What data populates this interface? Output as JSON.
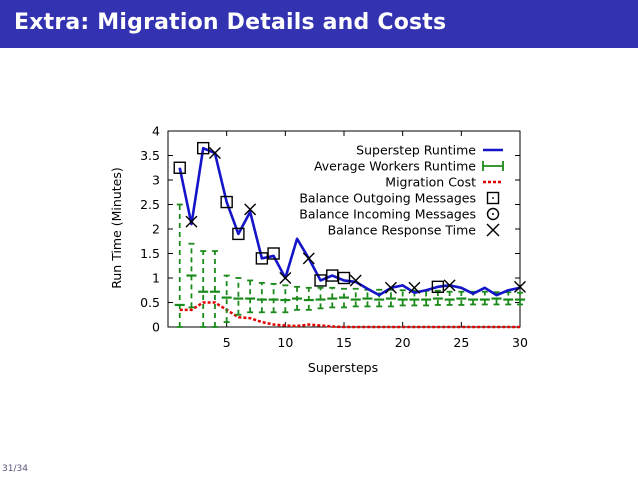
{
  "slide": {
    "title": "Extra: Migration Details and Costs",
    "page_number": "31/34"
  },
  "colors": {
    "title_bar": "#3333b2",
    "superstep_runtime": "#1414c8",
    "average_workers_runtime": "#1a8a1a",
    "migration_cost": "#e00000",
    "markers": "#000000"
  },
  "chart_data": {
    "type": "line",
    "xlabel": "Supersteps",
    "ylabel": "Run Time (Minutes)",
    "xlim": [
      0,
      30
    ],
    "ylim": [
      0,
      4
    ],
    "x_ticks": [
      5,
      10,
      15,
      20,
      25,
      30
    ],
    "y_ticks": [
      0,
      0.5,
      1,
      1.5,
      2,
      2.5,
      3,
      3.5,
      4
    ],
    "grid": false,
    "legend_position": "top-right",
    "x": [
      1,
      2,
      3,
      4,
      5,
      6,
      7,
      8,
      9,
      10,
      11,
      12,
      13,
      14,
      15,
      16,
      17,
      18,
      19,
      20,
      21,
      22,
      23,
      24,
      25,
      26,
      27,
      28,
      29,
      30
    ],
    "series": [
      {
        "name": "Superstep Runtime",
        "style": "line",
        "values": [
          3.25,
          2.1,
          3.65,
          3.55,
          2.55,
          1.9,
          2.35,
          1.4,
          1.45,
          1.0,
          1.8,
          1.4,
          0.95,
          1.05,
          0.95,
          0.92,
          0.78,
          0.65,
          0.8,
          0.85,
          0.7,
          0.75,
          0.82,
          0.85,
          0.8,
          0.68,
          0.8,
          0.65,
          0.75,
          0.8
        ]
      },
      {
        "name": "Average Workers Runtime",
        "style": "errorbars",
        "values": [
          0.45,
          1.05,
          0.72,
          0.72,
          0.6,
          0.58,
          0.58,
          0.56,
          0.56,
          0.55,
          0.58,
          0.55,
          0.56,
          0.58,
          0.6,
          0.56,
          0.58,
          0.56,
          0.58,
          0.56,
          0.56,
          0.56,
          0.58,
          0.56,
          0.58,
          0.56,
          0.56,
          0.58,
          0.56,
          0.56
        ],
        "lower": [
          0.0,
          0.4,
          0.0,
          0.0,
          0.1,
          0.25,
          0.3,
          0.3,
          0.3,
          0.3,
          0.35,
          0.35,
          0.38,
          0.4,
          0.4,
          0.42,
          0.42,
          0.42,
          0.42,
          0.44,
          0.44,
          0.44,
          0.45,
          0.45,
          0.45,
          0.46,
          0.46,
          0.46,
          0.46,
          0.46
        ],
        "upper": [
          2.5,
          1.7,
          1.55,
          1.55,
          1.05,
          1.0,
          0.95,
          0.9,
          0.88,
          0.85,
          0.82,
          0.8,
          0.8,
          0.8,
          0.78,
          0.78,
          0.76,
          0.76,
          0.76,
          0.75,
          0.74,
          0.74,
          0.74,
          0.72,
          0.72,
          0.72,
          0.72,
          0.71,
          0.71,
          0.7
        ]
      },
      {
        "name": "Migration Cost",
        "style": "dashed",
        "values": [
          0.35,
          0.35,
          0.5,
          0.5,
          0.35,
          0.2,
          0.18,
          0.1,
          0.05,
          0.03,
          0.02,
          0.05,
          0.03,
          0.01,
          0,
          0,
          0,
          0,
          0,
          0,
          0,
          0,
          0,
          0,
          0,
          0,
          0,
          0,
          0,
          0
        ]
      },
      {
        "name": "Balance Outgoing Messages",
        "style": "square",
        "points": [
          [
            1,
            3.25
          ],
          [
            3,
            3.65
          ],
          [
            5,
            2.55
          ],
          [
            6,
            1.9
          ],
          [
            8,
            1.4
          ],
          [
            9,
            1.5
          ],
          [
            13,
            0.95
          ],
          [
            14,
            1.05
          ],
          [
            15,
            1.0
          ],
          [
            23,
            0.82
          ]
        ]
      },
      {
        "name": "Balance Incoming Messages",
        "style": "circle",
        "points": []
      },
      {
        "name": "Balance Response Time",
        "style": "x",
        "points": [
          [
            2,
            2.15
          ],
          [
            4,
            3.55
          ],
          [
            7,
            2.4
          ],
          [
            10,
            1.0
          ],
          [
            12,
            1.4
          ],
          [
            16,
            0.95
          ],
          [
            19,
            0.8
          ],
          [
            21,
            0.8
          ],
          [
            24,
            0.85
          ],
          [
            30,
            0.82
          ]
        ]
      }
    ]
  }
}
